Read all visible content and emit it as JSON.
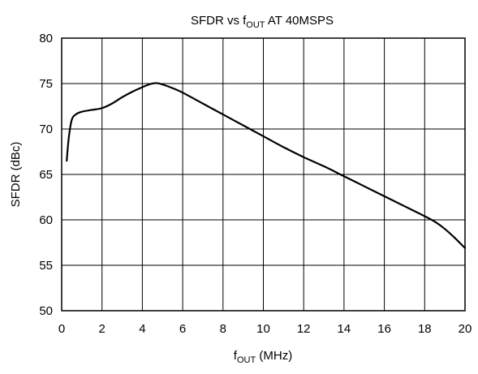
{
  "chart_data": {
    "type": "line",
    "title": "SFDR vs f",
    "title_sub": "OUT",
    "title_suffix": " AT 40MSPS",
    "xlabel": "f",
    "xlabel_sub": "OUT",
    "xlabel_suffix": " (MHz)",
    "ylabel": "SFDR (dBc)",
    "xlim": [
      0,
      20
    ],
    "ylim": [
      50,
      80
    ],
    "x_ticks": [
      0,
      2,
      4,
      6,
      8,
      10,
      12,
      14,
      16,
      18,
      20
    ],
    "y_ticks": [
      50,
      55,
      60,
      65,
      70,
      75,
      80
    ],
    "grid": true,
    "series": [
      {
        "x": [
          0.25,
          0.35,
          0.5,
          0.7,
          1.0,
          1.5,
          2.0,
          2.5,
          3.0,
          3.5,
          4.0,
          4.4,
          4.7,
          5.0,
          5.5,
          6.0,
          7.0,
          8.0,
          9.0,
          10.0,
          11.0,
          12.0,
          13.0,
          14.0,
          15.0,
          16.0,
          17.0,
          18.0,
          18.5,
          19.0,
          19.5,
          20.0
        ],
        "y": [
          66.5,
          69.0,
          71.0,
          71.6,
          71.9,
          72.1,
          72.3,
          72.8,
          73.5,
          74.1,
          74.6,
          74.95,
          75.05,
          74.9,
          74.5,
          74.0,
          72.8,
          71.6,
          70.4,
          69.2,
          68.0,
          66.9,
          65.9,
          64.8,
          63.7,
          62.6,
          61.5,
          60.4,
          59.8,
          59.0,
          58.0,
          56.9
        ],
        "color": "#000000"
      }
    ]
  }
}
